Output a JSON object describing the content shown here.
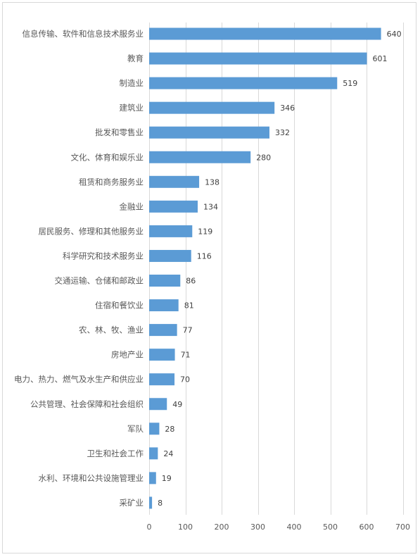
{
  "colors": {
    "bar": "#5b9bd5",
    "grid": "#d9d9d9",
    "text": "#595959"
  },
  "chart_data": {
    "type": "bar",
    "orientation": "horizontal",
    "categories": [
      "信息传输、软件和信息技术服务业",
      "教育",
      "制造业",
      "建筑业",
      "批发和零售业",
      "文化、体育和娱乐业",
      "租赁和商务服务业",
      "金融业",
      "居民服务、修理和其他服务业",
      "科学研究和技术服务业",
      "交通运输、仓储和邮政业",
      "住宿和餐饮业",
      "农、林、牧、渔业",
      "房地产业",
      "电力、热力、燃气及水生产和供应业",
      "公共管理、社会保障和社会组织",
      "军队",
      "卫生和社会工作",
      "水利、环境和公共设施管理业",
      "采矿业"
    ],
    "values": [
      640,
      601,
      519,
      346,
      332,
      280,
      138,
      134,
      119,
      116,
      86,
      81,
      77,
      71,
      70,
      49,
      28,
      24,
      19,
      8
    ],
    "xlim": [
      0,
      700
    ],
    "xticks": [
      0,
      100,
      200,
      300,
      400,
      500,
      600,
      700
    ],
    "grid": "vertical",
    "data_labels": true,
    "legend": "none"
  }
}
